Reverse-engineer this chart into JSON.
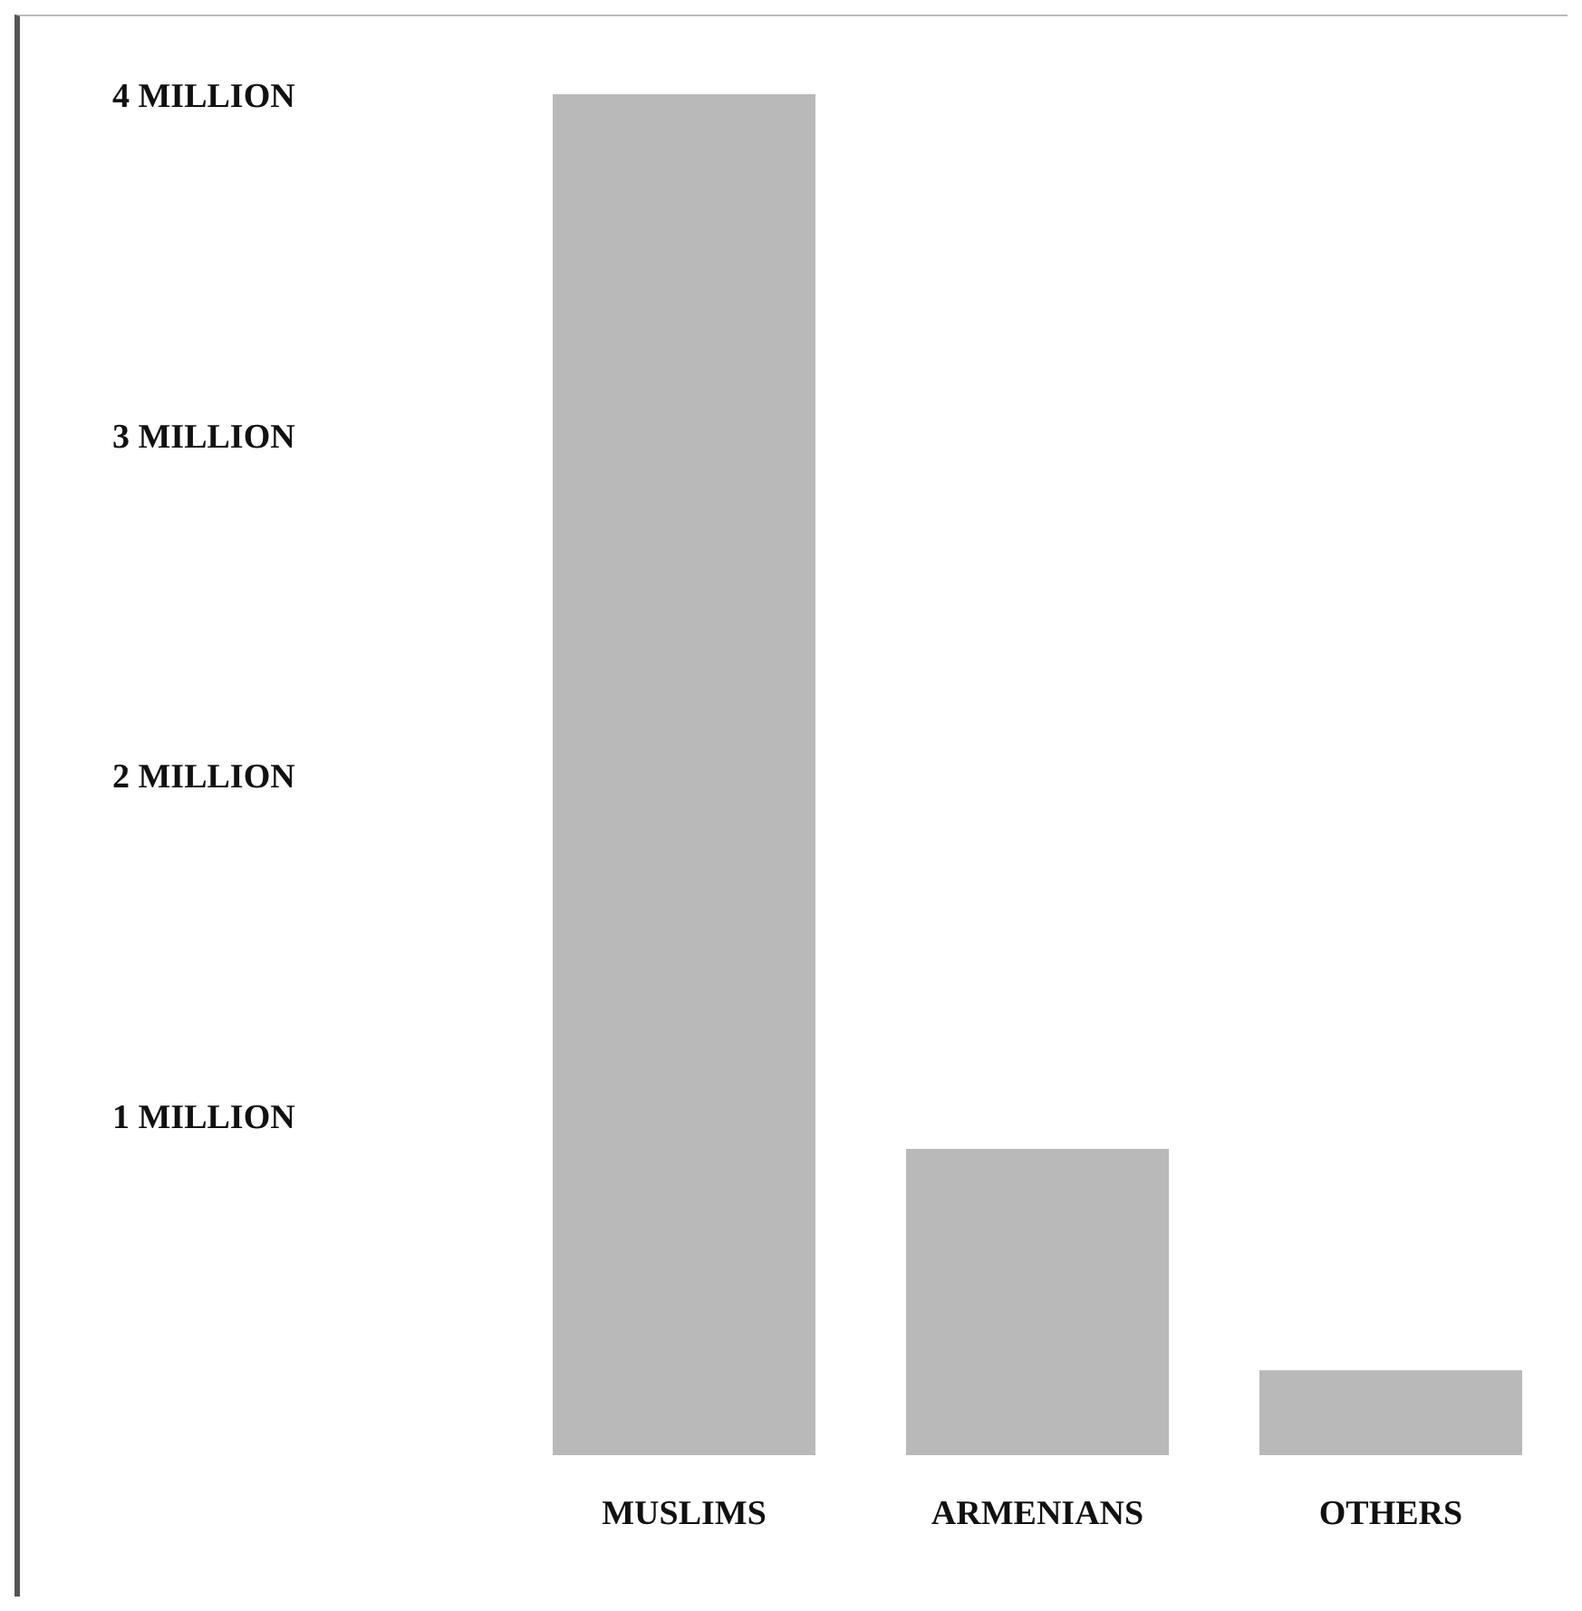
{
  "chart_data": {
    "type": "bar",
    "categories": [
      "MUSLIMS",
      "ARMENIANS",
      "OTHERS"
    ],
    "values": [
      4.0,
      0.9,
      0.25
    ],
    "color": "#b9b9b9",
    "ylim": [
      0,
      4
    ],
    "yticks": [
      {
        "value": 1,
        "label": "1 MILLION"
      },
      {
        "value": 2,
        "label": "2 MILLION"
      },
      {
        "value": 3,
        "label": "3 MILLION"
      },
      {
        "value": 4,
        "label": "4 MILLION"
      }
    ],
    "grid": false,
    "legend": false
  }
}
